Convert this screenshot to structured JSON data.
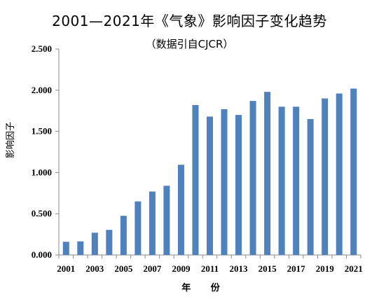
{
  "chart_data": {
    "type": "bar",
    "title": "2001—2021年《气象》影响因子变化趋势",
    "subtitle": "（数据引自CJCR）",
    "xlabel": "年  份",
    "ylabel": "影响因子",
    "categories": [
      "2001",
      "2002",
      "2003",
      "2004",
      "2005",
      "2006",
      "2007",
      "2008",
      "2009",
      "2010",
      "2011",
      "2012",
      "2013",
      "2014",
      "2015",
      "2016",
      "2017",
      "2018",
      "2019",
      "2020",
      "2021"
    ],
    "x_tick_labels": [
      "2001",
      "2003",
      "2005",
      "2007",
      "2009",
      "2011",
      "2013",
      "2015",
      "2017",
      "2019",
      "2021"
    ],
    "values": [
      0.16,
      0.165,
      0.27,
      0.305,
      0.475,
      0.65,
      0.77,
      0.84,
      1.095,
      1.82,
      1.68,
      1.77,
      1.7,
      1.87,
      1.98,
      1.8,
      1.8,
      1.65,
      1.9,
      1.96,
      2.02
    ],
    "y_ticks": [
      "0.000",
      "0.500",
      "1.000",
      "1.500",
      "2.000",
      "2.500"
    ],
    "ylim": [
      0,
      2.5
    ],
    "bar_color": "#4F81BD",
    "grid": false,
    "legend": "none"
  }
}
